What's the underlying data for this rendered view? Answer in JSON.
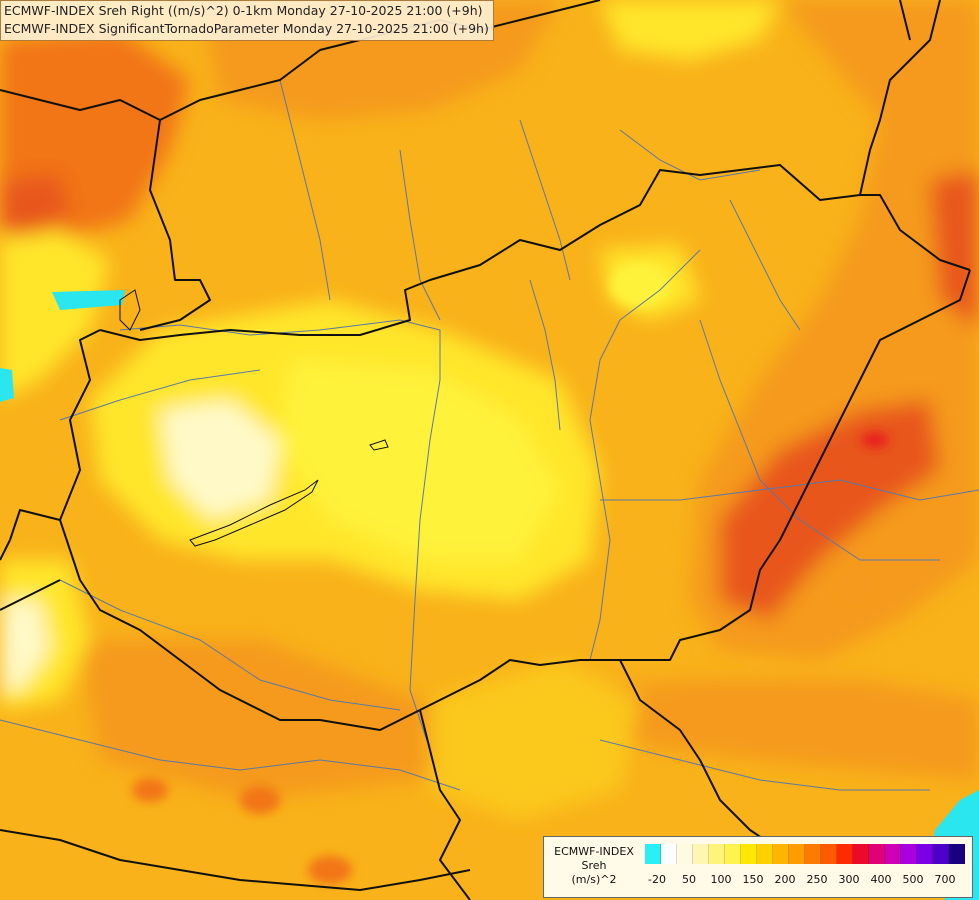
{
  "header": {
    "line1": "ECMWF-INDEX Sreh Right ((m/s)^2) 0-1km Monday 27-10-2025 21:00 (+9h)",
    "line2": "ECMWF-INDEX SignificantTornadoParameter Monday 27-10-2025 21:00 (+9h)"
  },
  "legend": {
    "source": "ECMWF-INDEX",
    "name": "Sreh",
    "unit": "(m/s)^2",
    "colors": [
      "#28f0f5",
      "#ffffff",
      "#fffbe0",
      "#fff6b4",
      "#fff47a",
      "#fff34c",
      "#ffe800",
      "#ffd000",
      "#ffb400",
      "#ff9c00",
      "#ff7a00",
      "#ff5a00",
      "#ff2a00",
      "#ec0a2a",
      "#e0007a",
      "#cc00b4",
      "#a800e0",
      "#7a00e6",
      "#4c00c8",
      "#180080"
    ],
    "ticks": [
      "-20",
      "50",
      "100",
      "150",
      "200",
      "250",
      "300",
      "400",
      "500",
      "700"
    ]
  },
  "map": {
    "colors": {
      "base": "#f9b21a",
      "orange_dark": "#f27418",
      "orange": "#f59a1c",
      "yellow_orange": "#fbc81c",
      "yellow": "#ffe62a",
      "bright_yellow": "#fff23a",
      "pale": "#fff9c8",
      "red_orange": "#e8561a",
      "cyan": "#2ae6ef",
      "border": "#111111",
      "river": "#5a78a8"
    }
  }
}
